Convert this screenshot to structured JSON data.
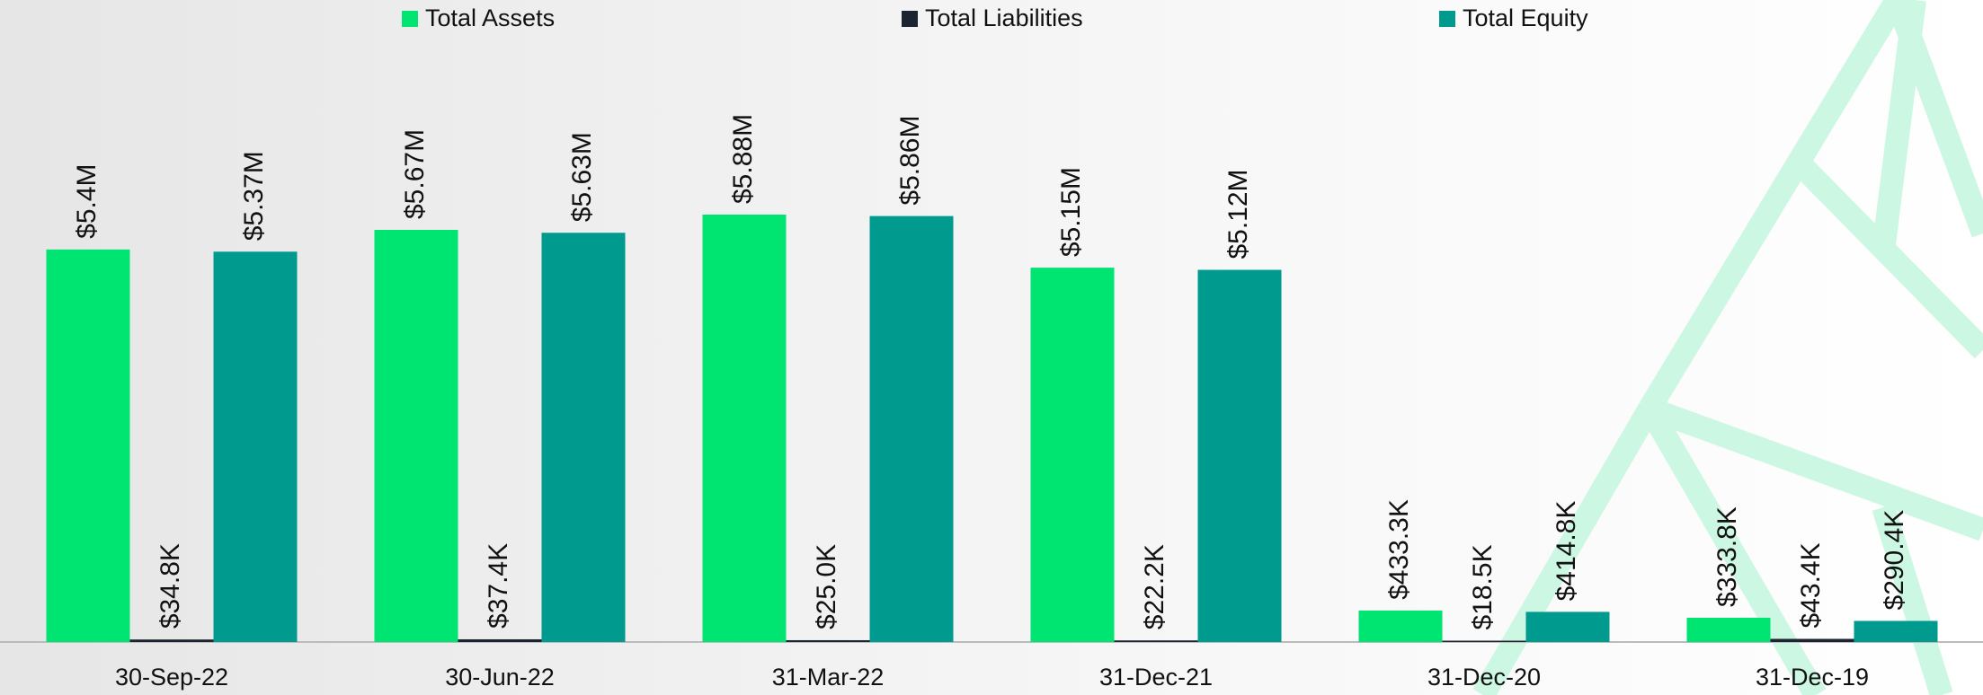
{
  "chart_data": {
    "type": "bar",
    "categories": [
      "30-Sep-22",
      "30-Jun-22",
      "31-Mar-22",
      "31-Dec-21",
      "31-Dec-20",
      "31-Dec-19"
    ],
    "series": [
      {
        "name": "Total Assets",
        "color": "#00e472",
        "values": [
          5400000,
          5670000,
          5880000,
          5150000,
          433300,
          333800
        ],
        "value_labels": [
          "$5.4M",
          "$5.67M",
          "$5.88M",
          "$5.15M",
          "$433.3K",
          "$333.8K"
        ]
      },
      {
        "name": "Total Liabilities",
        "color": "#1b2431",
        "values": [
          34800,
          37400,
          25000,
          22200,
          18500,
          43400
        ],
        "value_labels": [
          "$34.8K",
          "$37.4K",
          "$25.0K",
          "$22.2K",
          "$18.5K",
          "$43.4K"
        ]
      },
      {
        "name": "Total Equity",
        "color": "#009a8f",
        "values": [
          5370000,
          5630000,
          5860000,
          5120000,
          414800,
          290400
        ],
        "value_labels": [
          "$5.37M",
          "$5.63M",
          "$5.86M",
          "$5.12M",
          "$414.8K",
          "$290.4K"
        ]
      }
    ]
  }
}
